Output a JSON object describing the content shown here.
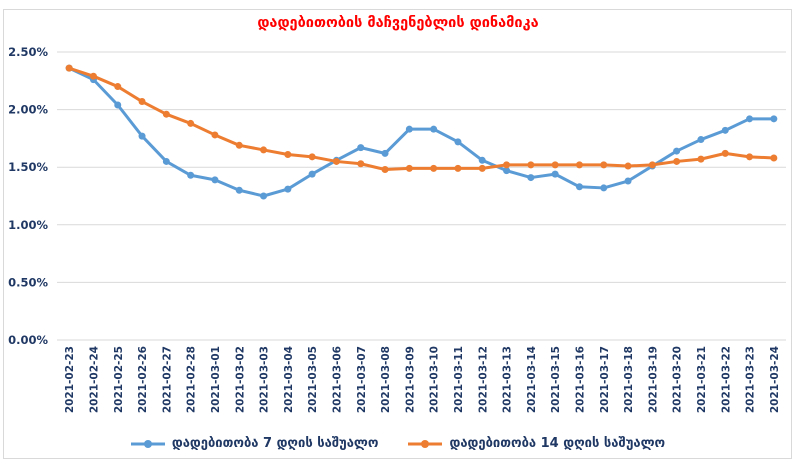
{
  "chart_data": {
    "type": "line",
    "title": "დადებითობის მაჩვენებლის დინამიკა",
    "title_color": "#FF0000",
    "background": "#FFFFFF",
    "grid": true,
    "gridline_color": "#D9D9D9",
    "axis_label_color": "#1F3864",
    "legend_position": "bottom",
    "ylim": [
      0,
      2.5
    ],
    "ytick_values": [
      0,
      0.5,
      1.0,
      1.5,
      2.0,
      2.5
    ],
    "ytick_labels": [
      "0.00%",
      "0.50%",
      "1.00%",
      "1.50%",
      "2.00%",
      "2.50%"
    ],
    "x": [
      "2021-02-23",
      "2021-02-24",
      "2021-02-25",
      "2021-02-26",
      "2021-02-27",
      "2021-02-28",
      "2021-03-01",
      "2021-03-02",
      "2021-03-03",
      "2021-03-04",
      "2021-03-05",
      "2021-03-06",
      "2021-03-07",
      "2021-03-08",
      "2021-03-09",
      "2021-03-10",
      "2021-03-11",
      "2021-03-12",
      "2021-03-13",
      "2021-03-14",
      "2021-03-15",
      "2021-03-16",
      "2021-03-17",
      "2021-03-18",
      "2021-03-19",
      "2021-03-20",
      "2021-03-21",
      "2021-03-22",
      "2021-03-23",
      "2021-03-24"
    ],
    "series": [
      {
        "name": "დადებითობა 7 დღის საშუალო",
        "color": "#5B9BD5",
        "marker": "circle",
        "values": [
          2.36,
          2.26,
          2.04,
          1.77,
          1.55,
          1.43,
          1.39,
          1.3,
          1.25,
          1.31,
          1.44,
          1.56,
          1.67,
          1.62,
          1.83,
          1.83,
          1.72,
          1.56,
          1.47,
          1.41,
          1.44,
          1.33,
          1.32,
          1.38,
          1.51,
          1.64,
          1.74,
          1.82,
          1.92,
          1.92
        ]
      },
      {
        "name": "დადებითობა 14 დღის საშუალო",
        "color": "#ED7D31",
        "marker": "circle",
        "values": [
          2.36,
          2.29,
          2.2,
          2.07,
          1.96,
          1.88,
          1.78,
          1.69,
          1.65,
          1.61,
          1.59,
          1.55,
          1.53,
          1.48,
          1.49,
          1.49,
          1.49,
          1.49,
          1.52,
          1.52,
          1.52,
          1.52,
          1.52,
          1.51,
          1.52,
          1.55,
          1.57,
          1.62,
          1.59,
          1.58
        ]
      }
    ]
  }
}
